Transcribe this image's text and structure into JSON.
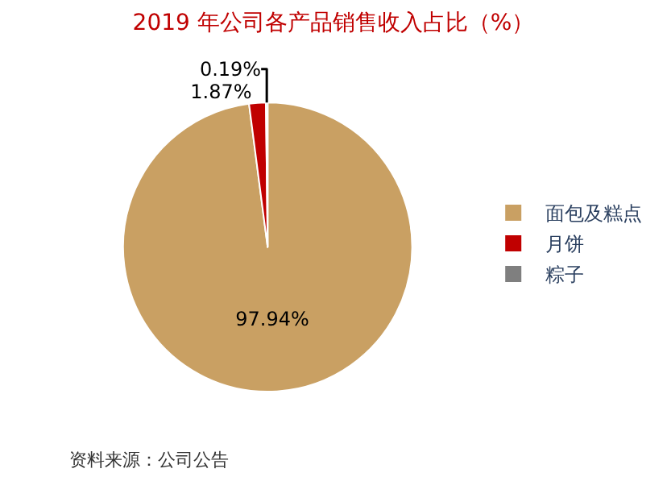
{
  "chart_data": {
    "type": "pie",
    "title": "2019 年公司各产品销售收入占比（%）",
    "categories": [
      "面包及糕点",
      "月饼",
      "粽子"
    ],
    "values": [
      97.94,
      1.87,
      0.19
    ],
    "value_labels": [
      "97.94%",
      "1.87%",
      "0.19%"
    ],
    "colors": [
      "#c9a063",
      "#c00000",
      "#7f7f7f"
    ],
    "legend": "right",
    "annotations": [
      "资料来源：公司公告"
    ]
  }
}
